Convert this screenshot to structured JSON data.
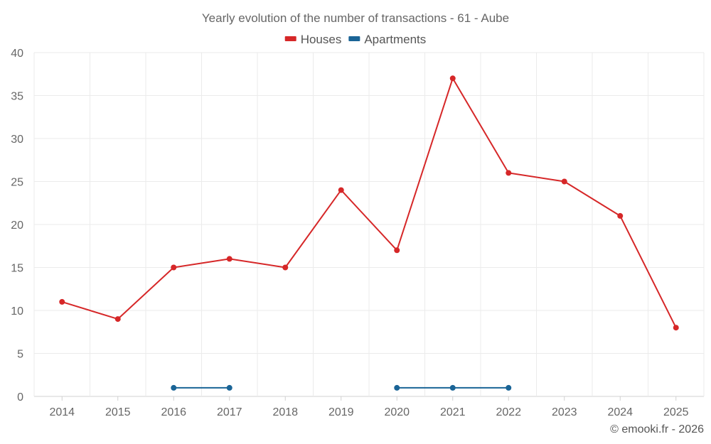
{
  "chart_data": {
    "type": "line",
    "title": "Yearly evolution of the number of transactions - 61 - Aube",
    "categories": [
      "2014",
      "2015",
      "2016",
      "2017",
      "2018",
      "2019",
      "2020",
      "2021",
      "2022",
      "2023",
      "2024",
      "2025"
    ],
    "ylim": [
      0,
      40
    ],
    "yticks": [
      0,
      5,
      10,
      15,
      20,
      25,
      30,
      35,
      40
    ],
    "grid": true,
    "legend_position": "top-center",
    "series": [
      {
        "name": "Houses",
        "color": "#d62728",
        "values": [
          11,
          9,
          15,
          16,
          15,
          24,
          17,
          37,
          26,
          25,
          21,
          8
        ]
      },
      {
        "name": "Apartments",
        "color": "#1a6496",
        "values": [
          null,
          null,
          1,
          1,
          null,
          null,
          1,
          1,
          1,
          null,
          null,
          null
        ]
      }
    ],
    "credit": "© emooki.fr - 2026"
  }
}
